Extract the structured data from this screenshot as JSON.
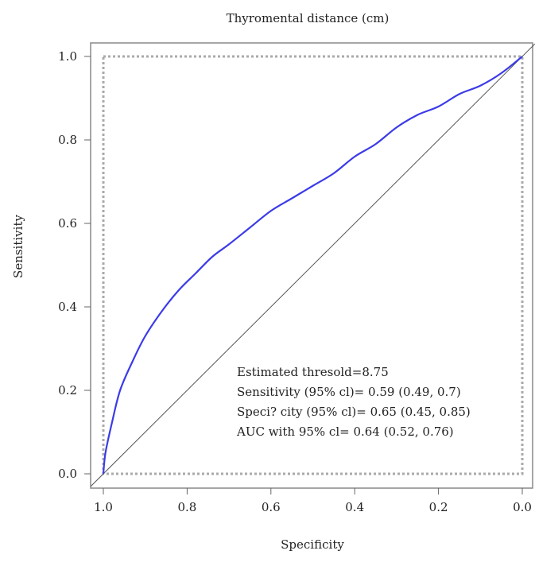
{
  "chart_data": {
    "type": "line",
    "title": "Thyromental distance (cm)",
    "xlabel": "Specificity",
    "ylabel": "Sensitivity",
    "x_reversed": true,
    "xlim": [
      1.0,
      0.0
    ],
    "ylim": [
      0.0,
      1.0
    ],
    "xticks": [
      "1.0",
      "0.8",
      "0.6",
      "0.4",
      "0.2",
      "0.0"
    ],
    "yticks": [
      "0.0",
      "0.2",
      "0.4",
      "0.6",
      "0.8",
      "1.0"
    ],
    "grid": false,
    "series": [
      {
        "color": "#3b3be8",
        "points": [
          {
            "x": 1.0,
            "y": 0.0
          },
          {
            "x": 0.995,
            "y": 0.05
          },
          {
            "x": 0.98,
            "y": 0.12
          },
          {
            "x": 0.96,
            "y": 0.2
          },
          {
            "x": 0.93,
            "y": 0.27
          },
          {
            "x": 0.9,
            "y": 0.33
          },
          {
            "x": 0.86,
            "y": 0.39
          },
          {
            "x": 0.82,
            "y": 0.44
          },
          {
            "x": 0.78,
            "y": 0.48
          },
          {
            "x": 0.74,
            "y": 0.52
          },
          {
            "x": 0.7,
            "y": 0.55
          },
          {
            "x": 0.65,
            "y": 0.59
          },
          {
            "x": 0.6,
            "y": 0.63
          },
          {
            "x": 0.55,
            "y": 0.66
          },
          {
            "x": 0.5,
            "y": 0.69
          },
          {
            "x": 0.45,
            "y": 0.72
          },
          {
            "x": 0.4,
            "y": 0.76
          },
          {
            "x": 0.35,
            "y": 0.79
          },
          {
            "x": 0.3,
            "y": 0.83
          },
          {
            "x": 0.25,
            "y": 0.86
          },
          {
            "x": 0.2,
            "y": 0.88
          },
          {
            "x": 0.15,
            "y": 0.91
          },
          {
            "x": 0.1,
            "y": 0.93
          },
          {
            "x": 0.05,
            "y": 0.96
          },
          {
            "x": 0.0,
            "y": 1.0
          }
        ]
      }
    ],
    "reference_line": {
      "color": "#555555",
      "from": {
        "x": 1.0,
        "y": 0.0
      },
      "to": {
        "x": 0.0,
        "y": 1.0
      }
    },
    "annotations": [
      "Estimated thresold=8.75",
      "Sensitivity (95% cl)= 0.59 (0.49, 0.7)",
      "Speci? city (95% cl)= 0.65 (0.45, 0.85)",
      "AUC with 95% cl= 0.64 (0.52, 0.76)"
    ]
  }
}
